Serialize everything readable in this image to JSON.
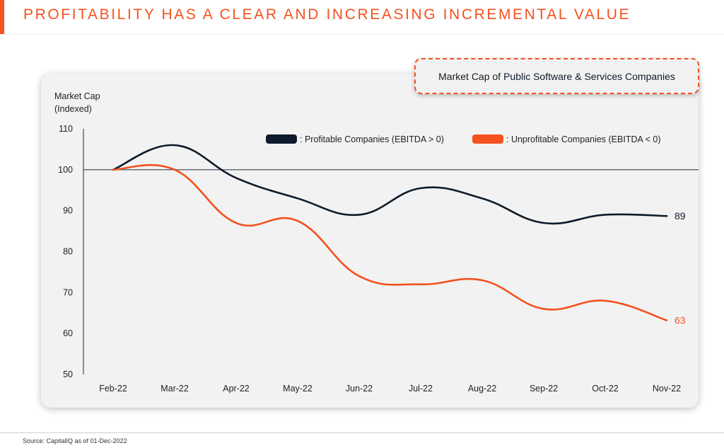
{
  "header": {
    "title": "PROFITABILITY HAS A CLEAR AND INCREASING INCREMENTAL VALUE"
  },
  "callout": {
    "prefix": "Market Cap of",
    "emphasis": "Public Software & Services Companies"
  },
  "footer": {
    "source": "Source: CapitalIQ as of 01-Dec-2022"
  },
  "colors": {
    "accent": "#f4511e",
    "profitable": "#0d1b2a",
    "unprofitable": "#f4511e"
  },
  "chart_data": {
    "type": "line",
    "ylabel_line1": "Market Cap",
    "ylabel_line2": "(Indexed)",
    "ylim": [
      50,
      110
    ],
    "yticks": [
      "110",
      "100",
      "90",
      "80",
      "70",
      "60",
      "50"
    ],
    "reference_line": 100,
    "categories": [
      "Feb-22",
      "Mar-22",
      "Apr-22",
      "May-22",
      "Jun-22",
      "Jul-22",
      "Aug-22",
      "Sep-22",
      "Oct-22",
      "Nov-22"
    ],
    "legend_position": "top-right",
    "series": [
      {
        "name": ": Profitable Companies (EBITDA > 0)",
        "color": "#0d1b2a",
        "values": [
          100,
          106,
          98,
          93,
          89,
          95.5,
          93,
          87,
          89,
          88.7
        ],
        "end_label": "89"
      },
      {
        "name": ": Unprofitable Companies (EBITDA < 0)",
        "color": "#f4511e",
        "values": [
          100,
          100,
          87,
          87.5,
          74,
          72,
          73,
          66,
          68,
          63.2
        ],
        "end_label": "63"
      }
    ]
  }
}
